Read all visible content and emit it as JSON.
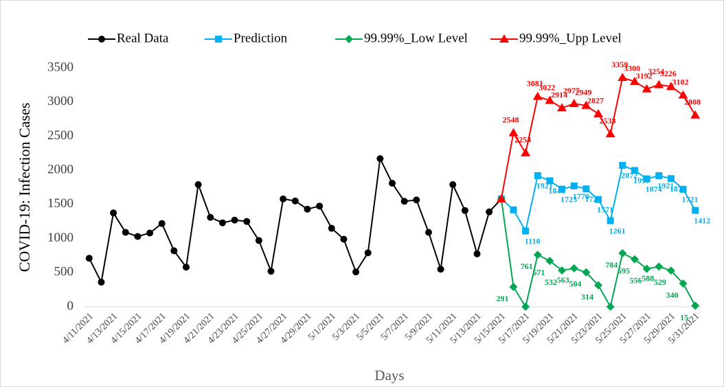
{
  "chart_data": {
    "type": "line",
    "x_label": "Days",
    "y_label": "COVID-19: Infection Cases",
    "categories": [
      "4/11/2021",
      null,
      "4/13/2021",
      null,
      "4/15/2021",
      null,
      "4/17/2021",
      null,
      "4/19/2021",
      null,
      "4/21/2021",
      null,
      "4/23/2021",
      null,
      "4/25/2021",
      null,
      "4/27/2021",
      null,
      "4/29/2021",
      null,
      "5/1/2021",
      null,
      "5/3/2021",
      null,
      "5/5/2021",
      null,
      "5/7/2021",
      null,
      "5/9/2021",
      null,
      "5/11/2021",
      null,
      "5/13/2021",
      null,
      "5/15/2021",
      null,
      "5/17/2021",
      null,
      "5/19/2021",
      null,
      "5/21/2021",
      null,
      "5/23/2021",
      null,
      "5/25/2021",
      null,
      "5/27/2021",
      null,
      "5/29/2021",
      null,
      "5/31/2021"
    ],
    "ylim": [
      0,
      3500
    ],
    "yticks": [
      0,
      500,
      1000,
      1500,
      2000,
      2500,
      3000,
      3500
    ],
    "grid": false,
    "series": [
      {
        "name": "Real Data",
        "color": "#000000",
        "marker": "circle",
        "values": [
          710,
          360,
          1375,
          1090,
          1030,
          1080,
          1220,
          820,
          580,
          1790,
          1310,
          1230,
          1270,
          1250,
          970,
          520,
          1580,
          1550,
          1430,
          1475,
          1150,
          990,
          510,
          790,
          2170,
          1810,
          1545,
          1565,
          1090,
          550,
          1790,
          1410,
          775,
          1390,
          1580,
          null,
          null,
          null,
          null,
          null,
          null,
          null,
          null,
          null,
          null,
          null,
          null,
          null,
          null,
          null,
          null
        ]
      },
      {
        "name": "Prediction",
        "color": "#00b0f0",
        "marker": "square",
        "values": [
          null,
          null,
          null,
          null,
          null,
          null,
          null,
          null,
          null,
          null,
          null,
          null,
          null,
          null,
          null,
          null,
          null,
          null,
          null,
          null,
          null,
          null,
          null,
          null,
          null,
          null,
          null,
          null,
          null,
          null,
          null,
          null,
          null,
          null,
          1580,
          1420,
          1110,
          1921,
          1846,
          1723,
          1770,
          1727,
          1571,
          1261,
          2072,
          1997,
          1874,
          1921,
          1878,
          1721,
          1412
        ],
        "value_labels": [
          null,
          null,
          null,
          null,
          null,
          null,
          null,
          null,
          null,
          null,
          null,
          null,
          null,
          null,
          null,
          null,
          null,
          null,
          null,
          null,
          null,
          null,
          null,
          null,
          null,
          null,
          null,
          null,
          null,
          null,
          null,
          null,
          null,
          null,
          null,
          null,
          "1110",
          "1921",
          "1846",
          "1723",
          "1770",
          "1727",
          "1571",
          "1261",
          "2072",
          "1997",
          "1874",
          "1921",
          "1878",
          "1721",
          "1412"
        ]
      },
      {
        "name": "99.99%_Low Level",
        "color": "#00a651",
        "marker": "diamond",
        "values": [
          null,
          null,
          null,
          null,
          null,
          null,
          null,
          null,
          null,
          null,
          null,
          null,
          null,
          null,
          null,
          null,
          null,
          null,
          null,
          null,
          null,
          null,
          null,
          null,
          null,
          null,
          null,
          null,
          null,
          null,
          null,
          null,
          null,
          null,
          1580,
          291,
          0,
          761,
          671,
          532,
          563,
          504,
          314,
          0,
          784,
          695,
          556,
          588,
          529,
          340,
          15
        ],
        "value_labels": [
          null,
          null,
          null,
          null,
          null,
          null,
          null,
          null,
          null,
          null,
          null,
          null,
          null,
          null,
          null,
          null,
          null,
          null,
          null,
          null,
          null,
          null,
          null,
          null,
          null,
          null,
          null,
          null,
          null,
          null,
          null,
          null,
          null,
          null,
          null,
          "291",
          null,
          "761",
          "671",
          "532",
          "563",
          "504",
          "314",
          null,
          "784",
          "695",
          "556",
          "588",
          "529",
          "340",
          "15"
        ]
      },
      {
        "name": "99.99%_Upp Level",
        "color": "#ff0000",
        "marker": "triangle",
        "values": [
          null,
          null,
          null,
          null,
          null,
          null,
          null,
          null,
          null,
          null,
          null,
          null,
          null,
          null,
          null,
          null,
          null,
          null,
          null,
          null,
          null,
          null,
          null,
          null,
          null,
          null,
          null,
          null,
          null,
          null,
          null,
          null,
          null,
          null,
          1580,
          2548,
          2254,
          3081,
          3022,
          2914,
          2977,
          2949,
          2827,
          2533,
          3359,
          3300,
          3192,
          3254,
          3226,
          3102,
          2808
        ],
        "value_labels": [
          null,
          null,
          null,
          null,
          null,
          null,
          null,
          null,
          null,
          null,
          null,
          null,
          null,
          null,
          null,
          null,
          null,
          null,
          null,
          null,
          null,
          null,
          null,
          null,
          null,
          null,
          null,
          null,
          null,
          null,
          null,
          null,
          null,
          null,
          null,
          "2548",
          "2254",
          "3081",
          "3022",
          "2914",
          "2977",
          "2949",
          "2827",
          "2533",
          "3359",
          "3300",
          "3192",
          "3254",
          "3226",
          "3102",
          "2808"
        ]
      }
    ]
  }
}
